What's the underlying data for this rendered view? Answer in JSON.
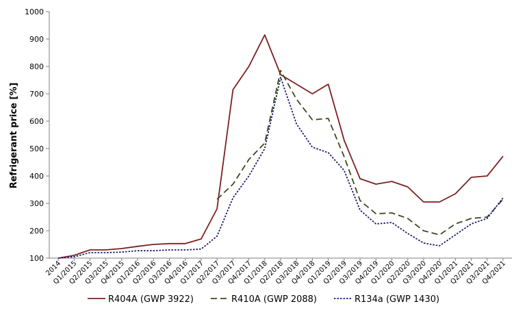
{
  "chart_data": {
    "type": "line",
    "title": "",
    "xlabel": "",
    "ylabel": "Refrigerant price [%]",
    "ylim": [
      100,
      1000
    ],
    "yticks": [
      100,
      200,
      300,
      400,
      500,
      600,
      700,
      800,
      900,
      1000
    ],
    "grid": false,
    "legend_position": "bottom",
    "categories": [
      "2014",
      "Q1/2015",
      "Q2/2015",
      "Q3/2015",
      "Q4/2015",
      "Q1/2016",
      "Q2/2016",
      "Q3/2016",
      "Q4/2016",
      "Q1/2017",
      "Q2/2017",
      "Q3/2017",
      "Q4/2017",
      "Q1/2018",
      "Q2/2018",
      "Q3/2018",
      "Q4/2018",
      "Q1/2019",
      "Q2/2019",
      "Q3/2019",
      "Q4/2019",
      "Q1/2020",
      "Q2/2020",
      "Q3/2020",
      "Q4/2020",
      "Q1/2021",
      "Q2/2021",
      "Q3/2021",
      "Q4/2021"
    ],
    "series": [
      {
        "name": "R404A (GWP 3922)",
        "color": "#7b1f1f",
        "dash": "solid",
        "values": [
          100,
          110,
          130,
          130,
          135,
          143,
          150,
          153,
          153,
          170,
          280,
          715,
          800,
          915,
          770,
          735,
          700,
          735,
          530,
          390,
          370,
          380,
          360,
          305,
          305,
          335,
          395,
          400,
          472
        ]
      },
      {
        "name": "R410A (GWP 2088)",
        "color": "#3a4a1a",
        "dash": "long-dash",
        "values": [
          null,
          null,
          null,
          null,
          null,
          null,
          null,
          null,
          null,
          null,
          315,
          370,
          460,
          520,
          785,
          680,
          605,
          610,
          470,
          310,
          262,
          265,
          245,
          200,
          185,
          225,
          245,
          250,
          315
        ]
      },
      {
        "name": "R134a (GWP 1430)",
        "color": "#1a1a6e",
        "dash": "dotted",
        "values": [
          100,
          105,
          120,
          120,
          122,
          127,
          127,
          130,
          130,
          133,
          180,
          320,
          400,
          500,
          760,
          590,
          505,
          485,
          420,
          275,
          225,
          230,
          190,
          155,
          145,
          185,
          225,
          245,
          320
        ]
      }
    ]
  }
}
